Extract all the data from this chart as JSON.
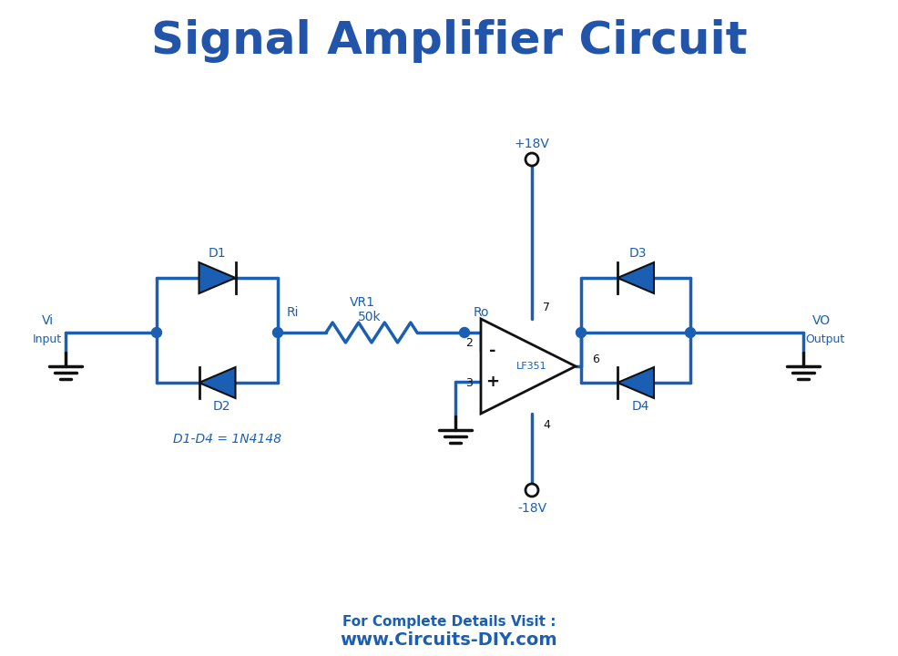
{
  "title": "Signal Amplifier Circuit",
  "title_color": "#2255AA",
  "title_fontsize": 36,
  "title_fontweight": "bold",
  "circuit_color": "#1a5fb4",
  "wire_lw": 2.5,
  "bg_color": "#ffffff",
  "footer_text1": "For Complete Details Visit :",
  "footer_text2": "www.Circuits-DIY.com",
  "footer_color": "#1a5fb4",
  "component_color": "#111111",
  "label_color": "#1a5fb4"
}
